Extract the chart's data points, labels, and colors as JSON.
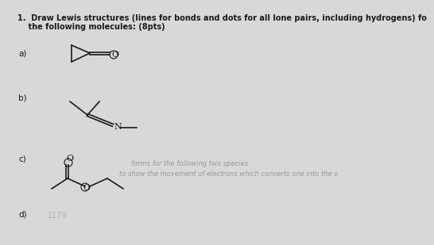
{
  "background_color": "#d8d8d8",
  "text_color": "#1a1a1a",
  "faded_text_color": "#999999",
  "lw": 1.2,
  "title1": "1.  Draw Lewis structures (lines for bonds and dots for all lone pairs, including hydrogens) fo",
  "title2": "    the following molecules: (8pts)",
  "label_a": "a)",
  "label_b": "b)",
  "label_c": "c)",
  "label_d": "d)",
  "faded1": "forms for the following two species.",
  "faded2": "to show the movement of electrons which converts one into the o"
}
